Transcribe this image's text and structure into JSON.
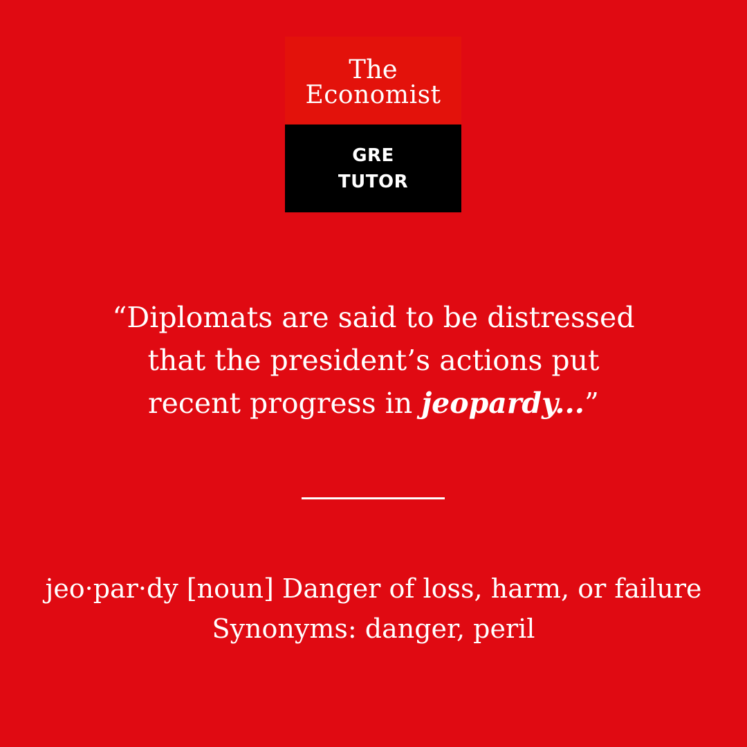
{
  "logo": {
    "line1": "The",
    "line2": "Economist",
    "badge_line1": "GRE",
    "badge_line2": "TUTOR"
  },
  "quote": {
    "line1": "“Diplomats are said to be distressed",
    "line2": "that the president’s actions put",
    "line3_prefix": "recent progress in ",
    "line3_keyword": "jeopardy...",
    "line3_suffix": "”"
  },
  "definition": {
    "line1": "jeo·par·dy [noun] Danger of loss, harm, or failure",
    "line2": "Synonyms: danger, peril"
  },
  "colors": {
    "background": "#e00a12",
    "logo_red": "#e3120b",
    "logo_black": "#000000",
    "text": "#ffffff"
  }
}
